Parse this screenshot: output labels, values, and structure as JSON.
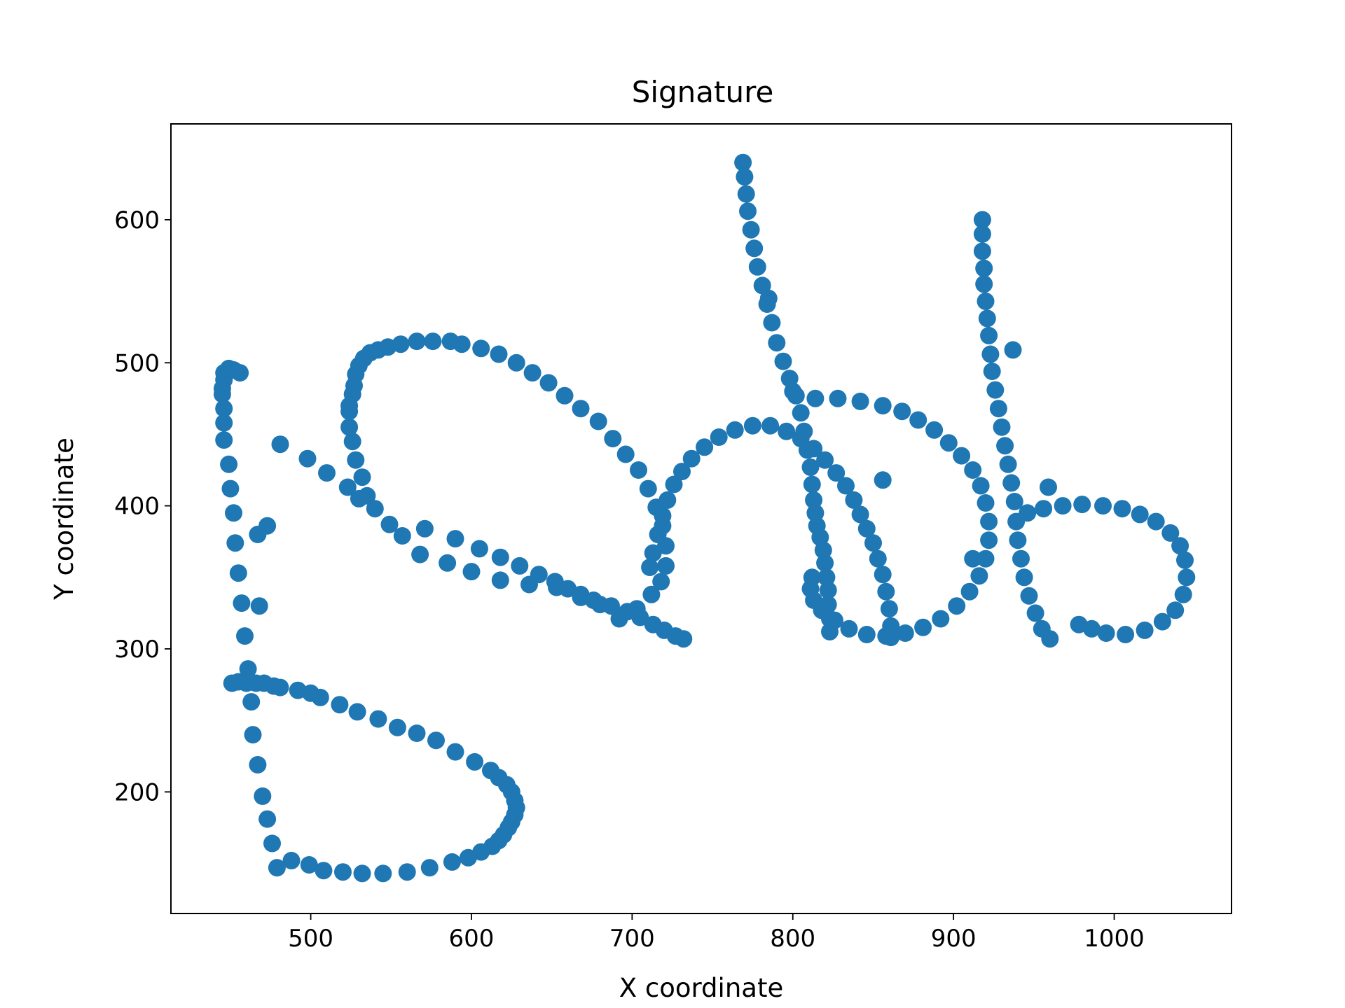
{
  "chart_data": {
    "type": "scatter",
    "title": "Signature",
    "xlabel": "X coordinate",
    "ylabel": "Y coordinate",
    "xlim": [
      413,
      1073
    ],
    "ylim": [
      115,
      667
    ],
    "xticks": [
      500,
      600,
      700,
      800,
      900,
      1000
    ],
    "yticks": [
      200,
      300,
      400,
      500,
      600
    ],
    "xtick_labels": [
      "500",
      "600",
      "700",
      "800",
      "900",
      "1000"
    ],
    "ytick_labels": [
      "200",
      "300",
      "400",
      "500",
      "600"
    ],
    "grid": false,
    "legend": "none",
    "marker_color": "#1f77b4",
    "series": [
      {
        "points": [
          [
            446,
            493
          ],
          [
            446,
            488
          ],
          [
            445,
            482
          ],
          [
            445,
            478
          ],
          [
            449,
            496
          ],
          [
            452,
            495
          ],
          [
            456,
            493
          ],
          [
            446,
            468
          ],
          [
            446,
            458
          ],
          [
            446,
            446
          ],
          [
            449,
            429
          ],
          [
            450,
            412
          ],
          [
            452,
            395
          ],
          [
            453,
            374
          ],
          [
            455,
            353
          ],
          [
            457,
            332
          ],
          [
            459,
            309
          ],
          [
            461,
            286
          ],
          [
            463,
            263
          ],
          [
            464,
            240
          ],
          [
            467,
            219
          ],
          [
            470,
            197
          ],
          [
            473,
            181
          ],
          [
            476,
            164
          ],
          [
            479,
            147
          ],
          [
            451,
            276
          ],
          [
            455,
            277
          ],
          [
            460,
            276
          ],
          [
            466,
            276
          ],
          [
            471,
            276
          ],
          [
            477,
            274
          ],
          [
            481,
            273
          ],
          [
            492,
            271
          ],
          [
            500,
            269
          ],
          [
            506,
            266
          ],
          [
            518,
            261
          ],
          [
            529,
            256
          ],
          [
            542,
            251
          ],
          [
            554,
            245
          ],
          [
            566,
            241
          ],
          [
            578,
            236
          ],
          [
            590,
            228
          ],
          [
            602,
            221
          ],
          [
            612,
            215
          ],
          [
            617,
            210
          ],
          [
            622,
            205
          ],
          [
            625,
            200
          ],
          [
            627,
            194
          ],
          [
            628,
            189
          ],
          [
            627,
            184
          ],
          [
            625,
            179
          ],
          [
            623,
            175
          ],
          [
            620,
            170
          ],
          [
            617,
            166
          ],
          [
            613,
            162
          ],
          [
            606,
            158
          ],
          [
            598,
            154
          ],
          [
            588,
            151
          ],
          [
            574,
            147
          ],
          [
            560,
            144
          ],
          [
            545,
            143
          ],
          [
            532,
            143
          ],
          [
            520,
            144
          ],
          [
            508,
            145
          ],
          [
            499,
            149
          ],
          [
            488,
            152
          ],
          [
            467,
            380
          ],
          [
            473,
            386
          ],
          [
            468,
            330
          ],
          [
            481,
            443
          ],
          [
            498,
            433
          ],
          [
            510,
            423
          ],
          [
            523,
            413
          ],
          [
            530,
            405
          ],
          [
            526,
            478
          ],
          [
            527,
            484
          ],
          [
            528,
            492
          ],
          [
            530,
            498
          ],
          [
            533,
            503
          ],
          [
            537,
            507
          ],
          [
            542,
            509
          ],
          [
            548,
            511
          ],
          [
            556,
            513
          ],
          [
            566,
            515
          ],
          [
            576,
            515
          ],
          [
            587,
            515
          ],
          [
            594,
            513
          ],
          [
            606,
            510
          ],
          [
            617,
            506
          ],
          [
            628,
            500
          ],
          [
            638,
            493
          ],
          [
            648,
            486
          ],
          [
            658,
            477
          ],
          [
            668,
            468
          ],
          [
            679,
            459
          ],
          [
            688,
            447
          ],
          [
            696,
            436
          ],
          [
            704,
            425
          ],
          [
            710,
            412
          ],
          [
            715,
            399
          ],
          [
            719,
            386
          ],
          [
            721,
            372
          ],
          [
            721,
            358
          ],
          [
            718,
            347
          ],
          [
            712,
            338
          ],
          [
            703,
            328
          ],
          [
            692,
            321
          ],
          [
            680,
            331
          ],
          [
            668,
            336
          ],
          [
            653,
            343
          ],
          [
            636,
            345
          ],
          [
            618,
            348
          ],
          [
            600,
            354
          ],
          [
            585,
            360
          ],
          [
            568,
            366
          ],
          [
            557,
            379
          ],
          [
            549,
            387
          ],
          [
            540,
            398
          ],
          [
            535,
            407
          ],
          [
            532,
            420
          ],
          [
            528,
            432
          ],
          [
            526,
            445
          ],
          [
            524,
            455
          ],
          [
            524,
            466
          ],
          [
            524,
            470
          ],
          [
            571,
            384
          ],
          [
            590,
            377
          ],
          [
            605,
            370
          ],
          [
            618,
            364
          ],
          [
            630,
            358
          ],
          [
            642,
            352
          ],
          [
            652,
            347
          ],
          [
            660,
            342
          ],
          [
            668,
            338
          ],
          [
            676,
            334
          ],
          [
            687,
            330
          ],
          [
            697,
            326
          ],
          [
            705,
            322
          ],
          [
            713,
            317
          ],
          [
            720,
            313
          ],
          [
            727,
            309
          ],
          [
            732,
            307
          ],
          [
            711,
            357
          ],
          [
            713,
            367
          ],
          [
            716,
            380
          ],
          [
            719,
            393
          ],
          [
            722,
            404
          ],
          [
            726,
            415
          ],
          [
            731,
            424
          ],
          [
            737,
            433
          ],
          [
            745,
            441
          ],
          [
            754,
            448
          ],
          [
            764,
            453
          ],
          [
            775,
            456
          ],
          [
            786,
            456
          ],
          [
            796,
            452
          ],
          [
            805,
            447
          ],
          [
            813,
            440
          ],
          [
            820,
            432
          ],
          [
            827,
            423
          ],
          [
            833,
            414
          ],
          [
            838,
            404
          ],
          [
            842,
            394
          ],
          [
            846,
            384
          ],
          [
            850,
            374
          ],
          [
            853,
            363
          ],
          [
            856,
            352
          ],
          [
            858,
            340
          ],
          [
            860,
            328
          ],
          [
            861,
            316
          ],
          [
            861,
            308
          ],
          [
            769,
            640
          ],
          [
            770,
            630
          ],
          [
            771,
            618
          ],
          [
            772,
            606
          ],
          [
            774,
            593
          ],
          [
            776,
            580
          ],
          [
            778,
            567
          ],
          [
            781,
            554
          ],
          [
            784,
            541
          ],
          [
            787,
            528
          ],
          [
            790,
            514
          ],
          [
            794,
            501
          ],
          [
            798,
            489
          ],
          [
            802,
            477
          ],
          [
            805,
            465
          ],
          [
            807,
            452
          ],
          [
            809,
            439
          ],
          [
            811,
            427
          ],
          [
            812,
            415
          ],
          [
            813,
            404
          ],
          [
            814,
            395
          ],
          [
            815,
            386
          ],
          [
            817,
            378
          ],
          [
            819,
            369
          ],
          [
            820,
            360
          ],
          [
            821,
            350
          ],
          [
            822,
            341
          ],
          [
            822,
            331
          ],
          [
            823,
            321
          ],
          [
            823,
            312
          ],
          [
            785,
            545
          ],
          [
            800,
            480
          ],
          [
            814,
            475
          ],
          [
            828,
            475
          ],
          [
            842,
            473
          ],
          [
            856,
            470
          ],
          [
            868,
            466
          ],
          [
            878,
            460
          ],
          [
            888,
            453
          ],
          [
            897,
            444
          ],
          [
            905,
            435
          ],
          [
            912,
            425
          ],
          [
            917,
            414
          ],
          [
            920,
            402
          ],
          [
            922,
            389
          ],
          [
            922,
            376
          ],
          [
            920,
            363
          ],
          [
            916,
            351
          ],
          [
            910,
            340
          ],
          [
            902,
            330
          ],
          [
            892,
            321
          ],
          [
            881,
            315
          ],
          [
            870,
            311
          ],
          [
            858,
            309
          ],
          [
            846,
            310
          ],
          [
            835,
            314
          ],
          [
            826,
            320
          ],
          [
            818,
            327
          ],
          [
            813,
            334
          ],
          [
            811,
            342
          ],
          [
            812,
            350
          ],
          [
            856,
            418
          ],
          [
            912,
            363
          ],
          [
            918,
            600
          ],
          [
            918,
            590
          ],
          [
            918,
            578
          ],
          [
            919,
            566
          ],
          [
            919,
            555
          ],
          [
            920,
            543
          ],
          [
            921,
            531
          ],
          [
            922,
            519
          ],
          [
            923,
            506
          ],
          [
            924,
            494
          ],
          [
            926,
            481
          ],
          [
            928,
            468
          ],
          [
            930,
            455
          ],
          [
            932,
            442
          ],
          [
            934,
            429
          ],
          [
            936,
            416
          ],
          [
            938,
            403
          ],
          [
            939,
            389
          ],
          [
            940,
            376
          ],
          [
            942,
            363
          ],
          [
            944,
            350
          ],
          [
            947,
            337
          ],
          [
            951,
            325
          ],
          [
            955,
            314
          ],
          [
            960,
            307
          ],
          [
            937,
            509
          ],
          [
            959,
            413
          ],
          [
            946,
            395
          ],
          [
            956,
            398
          ],
          [
            968,
            400
          ],
          [
            980,
            401
          ],
          [
            993,
            400
          ],
          [
            1005,
            398
          ],
          [
            1016,
            394
          ],
          [
            1026,
            389
          ],
          [
            1035,
            381
          ],
          [
            1041,
            372
          ],
          [
            1044,
            362
          ],
          [
            1045,
            350
          ],
          [
            1043,
            338
          ],
          [
            1038,
            327
          ],
          [
            1030,
            319
          ],
          [
            1019,
            313
          ],
          [
            1007,
            310
          ],
          [
            995,
            311
          ],
          [
            986,
            314
          ],
          [
            978,
            317
          ]
        ]
      }
    ]
  }
}
